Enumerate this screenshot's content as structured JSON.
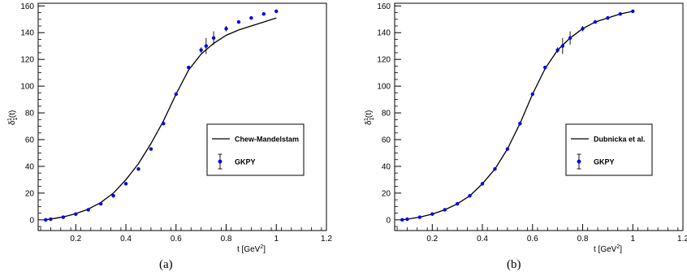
{
  "chart_data": [
    {
      "type": "line",
      "panel_label": "(a)",
      "xlabel_main": "t [GeV",
      "xlabel_sup": "2",
      "xlabel_end": "]",
      "ylabel_main": "δ",
      "ylabel_sub": "1",
      "ylabel_sup": "1",
      "ylabel_end": "(t)",
      "xlim": [
        0.05,
        1.2
      ],
      "ylim": [
        -8,
        162
      ],
      "xticks": [
        0.2,
        0.4,
        0.6,
        0.8,
        1,
        1.2
      ],
      "xtick_labels": [
        "0.2",
        "0.4",
        "0.6",
        "0.8",
        "1",
        "1.2"
      ],
      "yticks": [
        0,
        20,
        40,
        60,
        80,
        100,
        120,
        140,
        160
      ],
      "ytick_labels": [
        "0",
        "20",
        "40",
        "60",
        "80",
        "100",
        "120",
        "140",
        "160"
      ],
      "grid": false,
      "legend_position": "center-right",
      "series": [
        {
          "name": "Chew-Mandelstam",
          "kind": "line",
          "color": "#000000",
          "x": [
            0.078,
            0.1,
            0.15,
            0.2,
            0.25,
            0.3,
            0.35,
            0.4,
            0.45,
            0.5,
            0.55,
            0.6,
            0.65,
            0.7,
            0.75,
            0.8,
            0.85,
            0.9,
            0.95,
            1.0
          ],
          "y": [
            0,
            0.6,
            2.2,
            4.6,
            8,
            13,
            20,
            30,
            42,
            57,
            74,
            94,
            112,
            124,
            132,
            138,
            142,
            145,
            148,
            151
          ]
        },
        {
          "name": "GKPY",
          "kind": "points-errorbars",
          "color": "#0000ee",
          "x": [
            0.08,
            0.1,
            0.15,
            0.2,
            0.25,
            0.3,
            0.35,
            0.4,
            0.45,
            0.5,
            0.55,
            0.6,
            0.65,
            0.7,
            0.72,
            0.75,
            0.8,
            0.85,
            0.9,
            0.95,
            1.0
          ],
          "y": [
            0,
            0.5,
            2,
            4.3,
            7.5,
            12,
            18,
            27,
            38,
            53,
            72,
            94,
            114,
            127,
            130,
            136,
            143,
            148,
            151,
            154,
            156
          ],
          "yerr": [
            0,
            0,
            0,
            0,
            0,
            0,
            0,
            0,
            0,
            0,
            0,
            0,
            1,
            2,
            6,
            5,
            2,
            1,
            1,
            1,
            1
          ]
        }
      ]
    },
    {
      "type": "line",
      "panel_label": "(b)",
      "xlabel_main": "t [GeV",
      "xlabel_sup": "2",
      "xlabel_end": "]",
      "ylabel_main": "δ",
      "ylabel_sub": "1",
      "ylabel_sup": "1",
      "ylabel_end": "(t)",
      "xlim": [
        0.05,
        1.2
      ],
      "ylim": [
        -8,
        162
      ],
      "xticks": [
        0.2,
        0.4,
        0.6,
        0.8,
        1,
        1.2
      ],
      "xtick_labels": [
        "0.2",
        "0.4",
        "0.6",
        "0.8",
        "1",
        "1.2"
      ],
      "yticks": [
        0,
        20,
        40,
        60,
        80,
        100,
        120,
        140,
        160
      ],
      "ytick_labels": [
        "0",
        "20",
        "40",
        "60",
        "80",
        "100",
        "120",
        "140",
        "160"
      ],
      "grid": false,
      "legend_position": "center-right",
      "series": [
        {
          "name": "Dubnicka et al.",
          "kind": "line",
          "color": "#000000",
          "x": [
            0.078,
            0.1,
            0.15,
            0.2,
            0.25,
            0.3,
            0.35,
            0.4,
            0.45,
            0.5,
            0.55,
            0.6,
            0.65,
            0.7,
            0.75,
            0.8,
            0.85,
            0.9,
            0.95,
            1.0
          ],
          "y": [
            0,
            0.5,
            2,
            4.3,
            7.5,
            12,
            18,
            27,
            38,
            53,
            72,
            94,
            113,
            127,
            136,
            143,
            148,
            151,
            154,
            156
          ]
        },
        {
          "name": "GKPY",
          "kind": "points-errorbars",
          "color": "#0000ee",
          "x": [
            0.08,
            0.1,
            0.15,
            0.2,
            0.25,
            0.3,
            0.35,
            0.4,
            0.45,
            0.5,
            0.55,
            0.6,
            0.65,
            0.7,
            0.72,
            0.75,
            0.8,
            0.85,
            0.9,
            0.95,
            1.0
          ],
          "y": [
            0,
            0.5,
            2,
            4.3,
            7.5,
            12,
            18,
            27,
            38,
            53,
            72,
            94,
            114,
            127,
            130,
            136,
            143,
            148,
            151,
            154,
            156
          ],
          "yerr": [
            0,
            0,
            0,
            0,
            0,
            0,
            0,
            0,
            0,
            0,
            0,
            0,
            1,
            2,
            6,
            5,
            2,
            1,
            1,
            1,
            1
          ]
        }
      ]
    }
  ]
}
